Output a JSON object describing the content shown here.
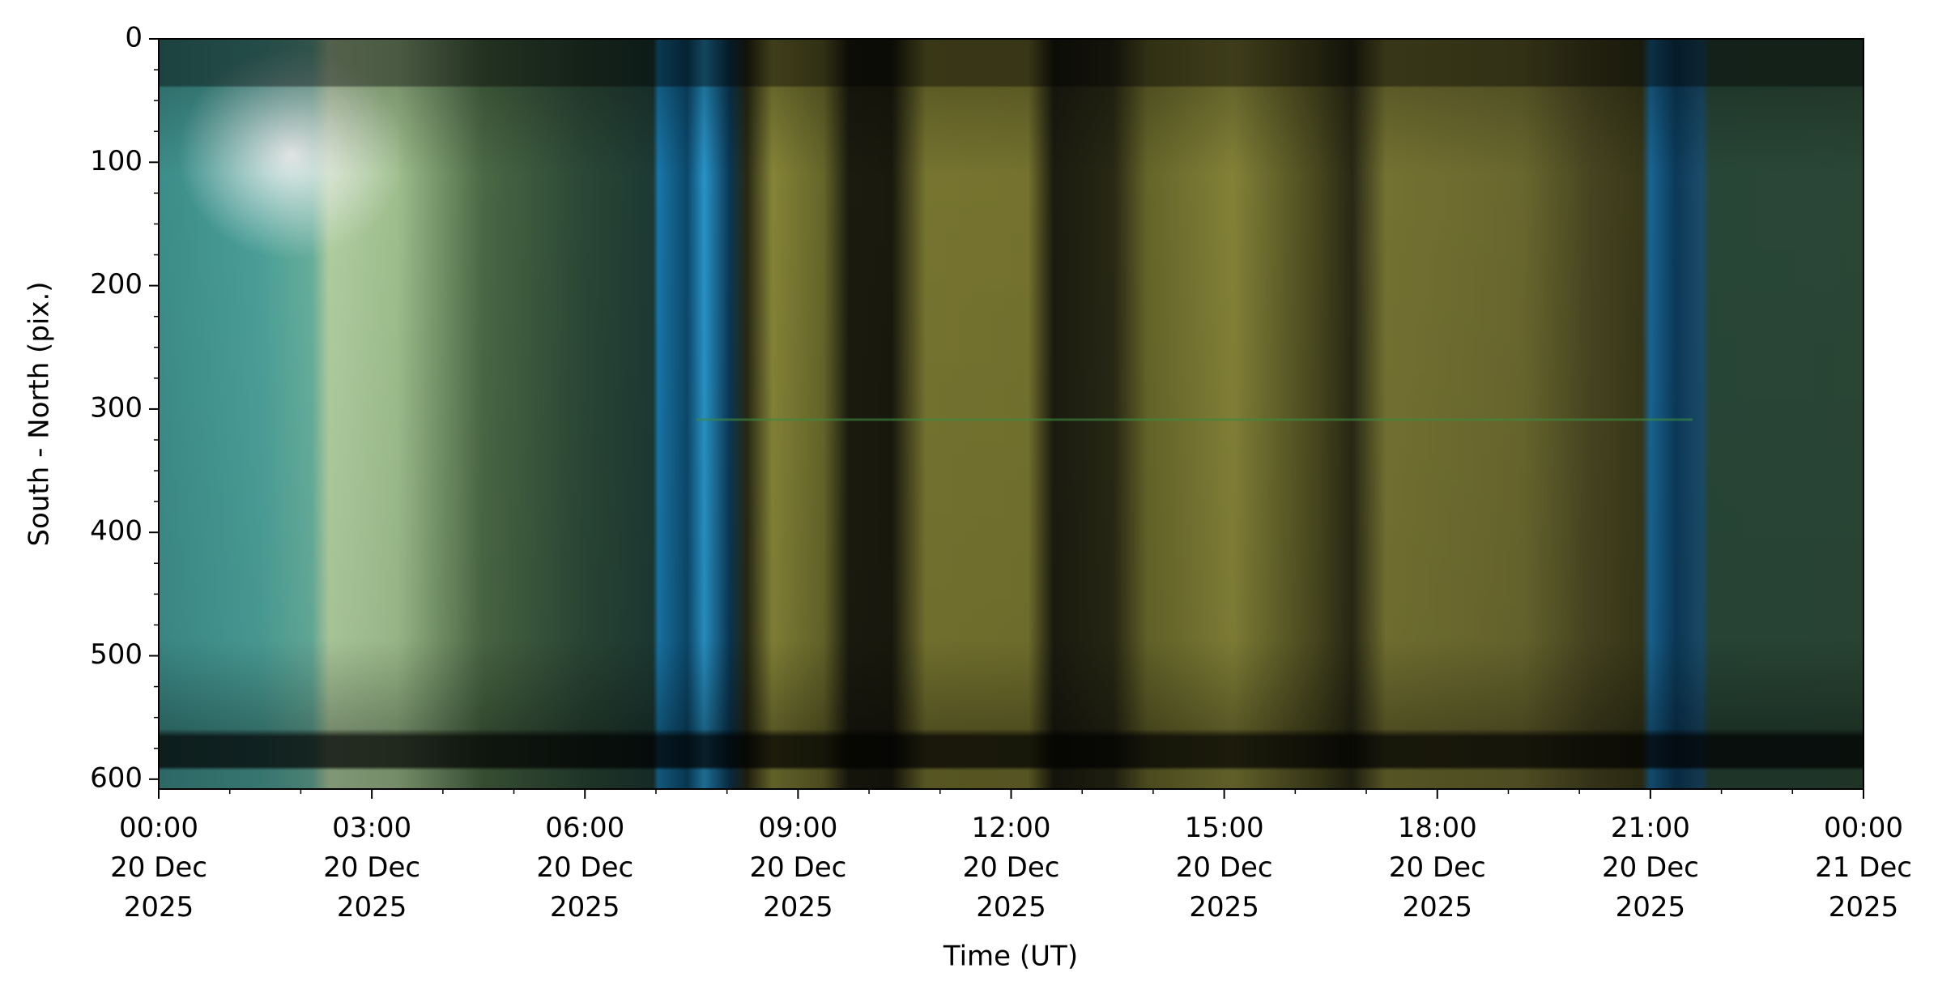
{
  "chart_data": {
    "type": "keogram",
    "xlabel": "Time (UT)",
    "ylabel": "South - North (pix.)",
    "xlim": [
      0,
      24
    ],
    "xticks": [
      {
        "value": 0,
        "label": "00:00\n20 Dec\n2025"
      },
      {
        "value": 3,
        "label": "03:00\n20 Dec\n2025"
      },
      {
        "value": 6,
        "label": "06:00\n20 Dec\n2025"
      },
      {
        "value": 9,
        "label": "09:00\n20 Dec\n2025"
      },
      {
        "value": 12,
        "label": "12:00\n20 Dec\n2025"
      },
      {
        "value": 15,
        "label": "15:00\n20 Dec\n2025"
      },
      {
        "value": 18,
        "label": "18:00\n20 Dec\n2025"
      },
      {
        "value": 21,
        "label": "21:00\n20 Dec\n2025"
      },
      {
        "value": 24,
        "label": "00:00\n21 Dec\n2025"
      }
    ],
    "xminorticks": [
      1,
      2,
      4,
      5,
      7,
      8,
      10,
      11,
      13,
      14,
      16,
      17,
      19,
      20,
      22,
      23
    ],
    "ylim": [
      0,
      608
    ],
    "y_inverted": true,
    "yticks": [
      0,
      100,
      200,
      300,
      400,
      500,
      600
    ],
    "yminorticks": [
      25,
      50,
      75,
      125,
      150,
      175,
      225,
      250,
      275,
      325,
      350,
      375,
      425,
      450,
      475,
      525,
      550,
      575
    ]
  }
}
